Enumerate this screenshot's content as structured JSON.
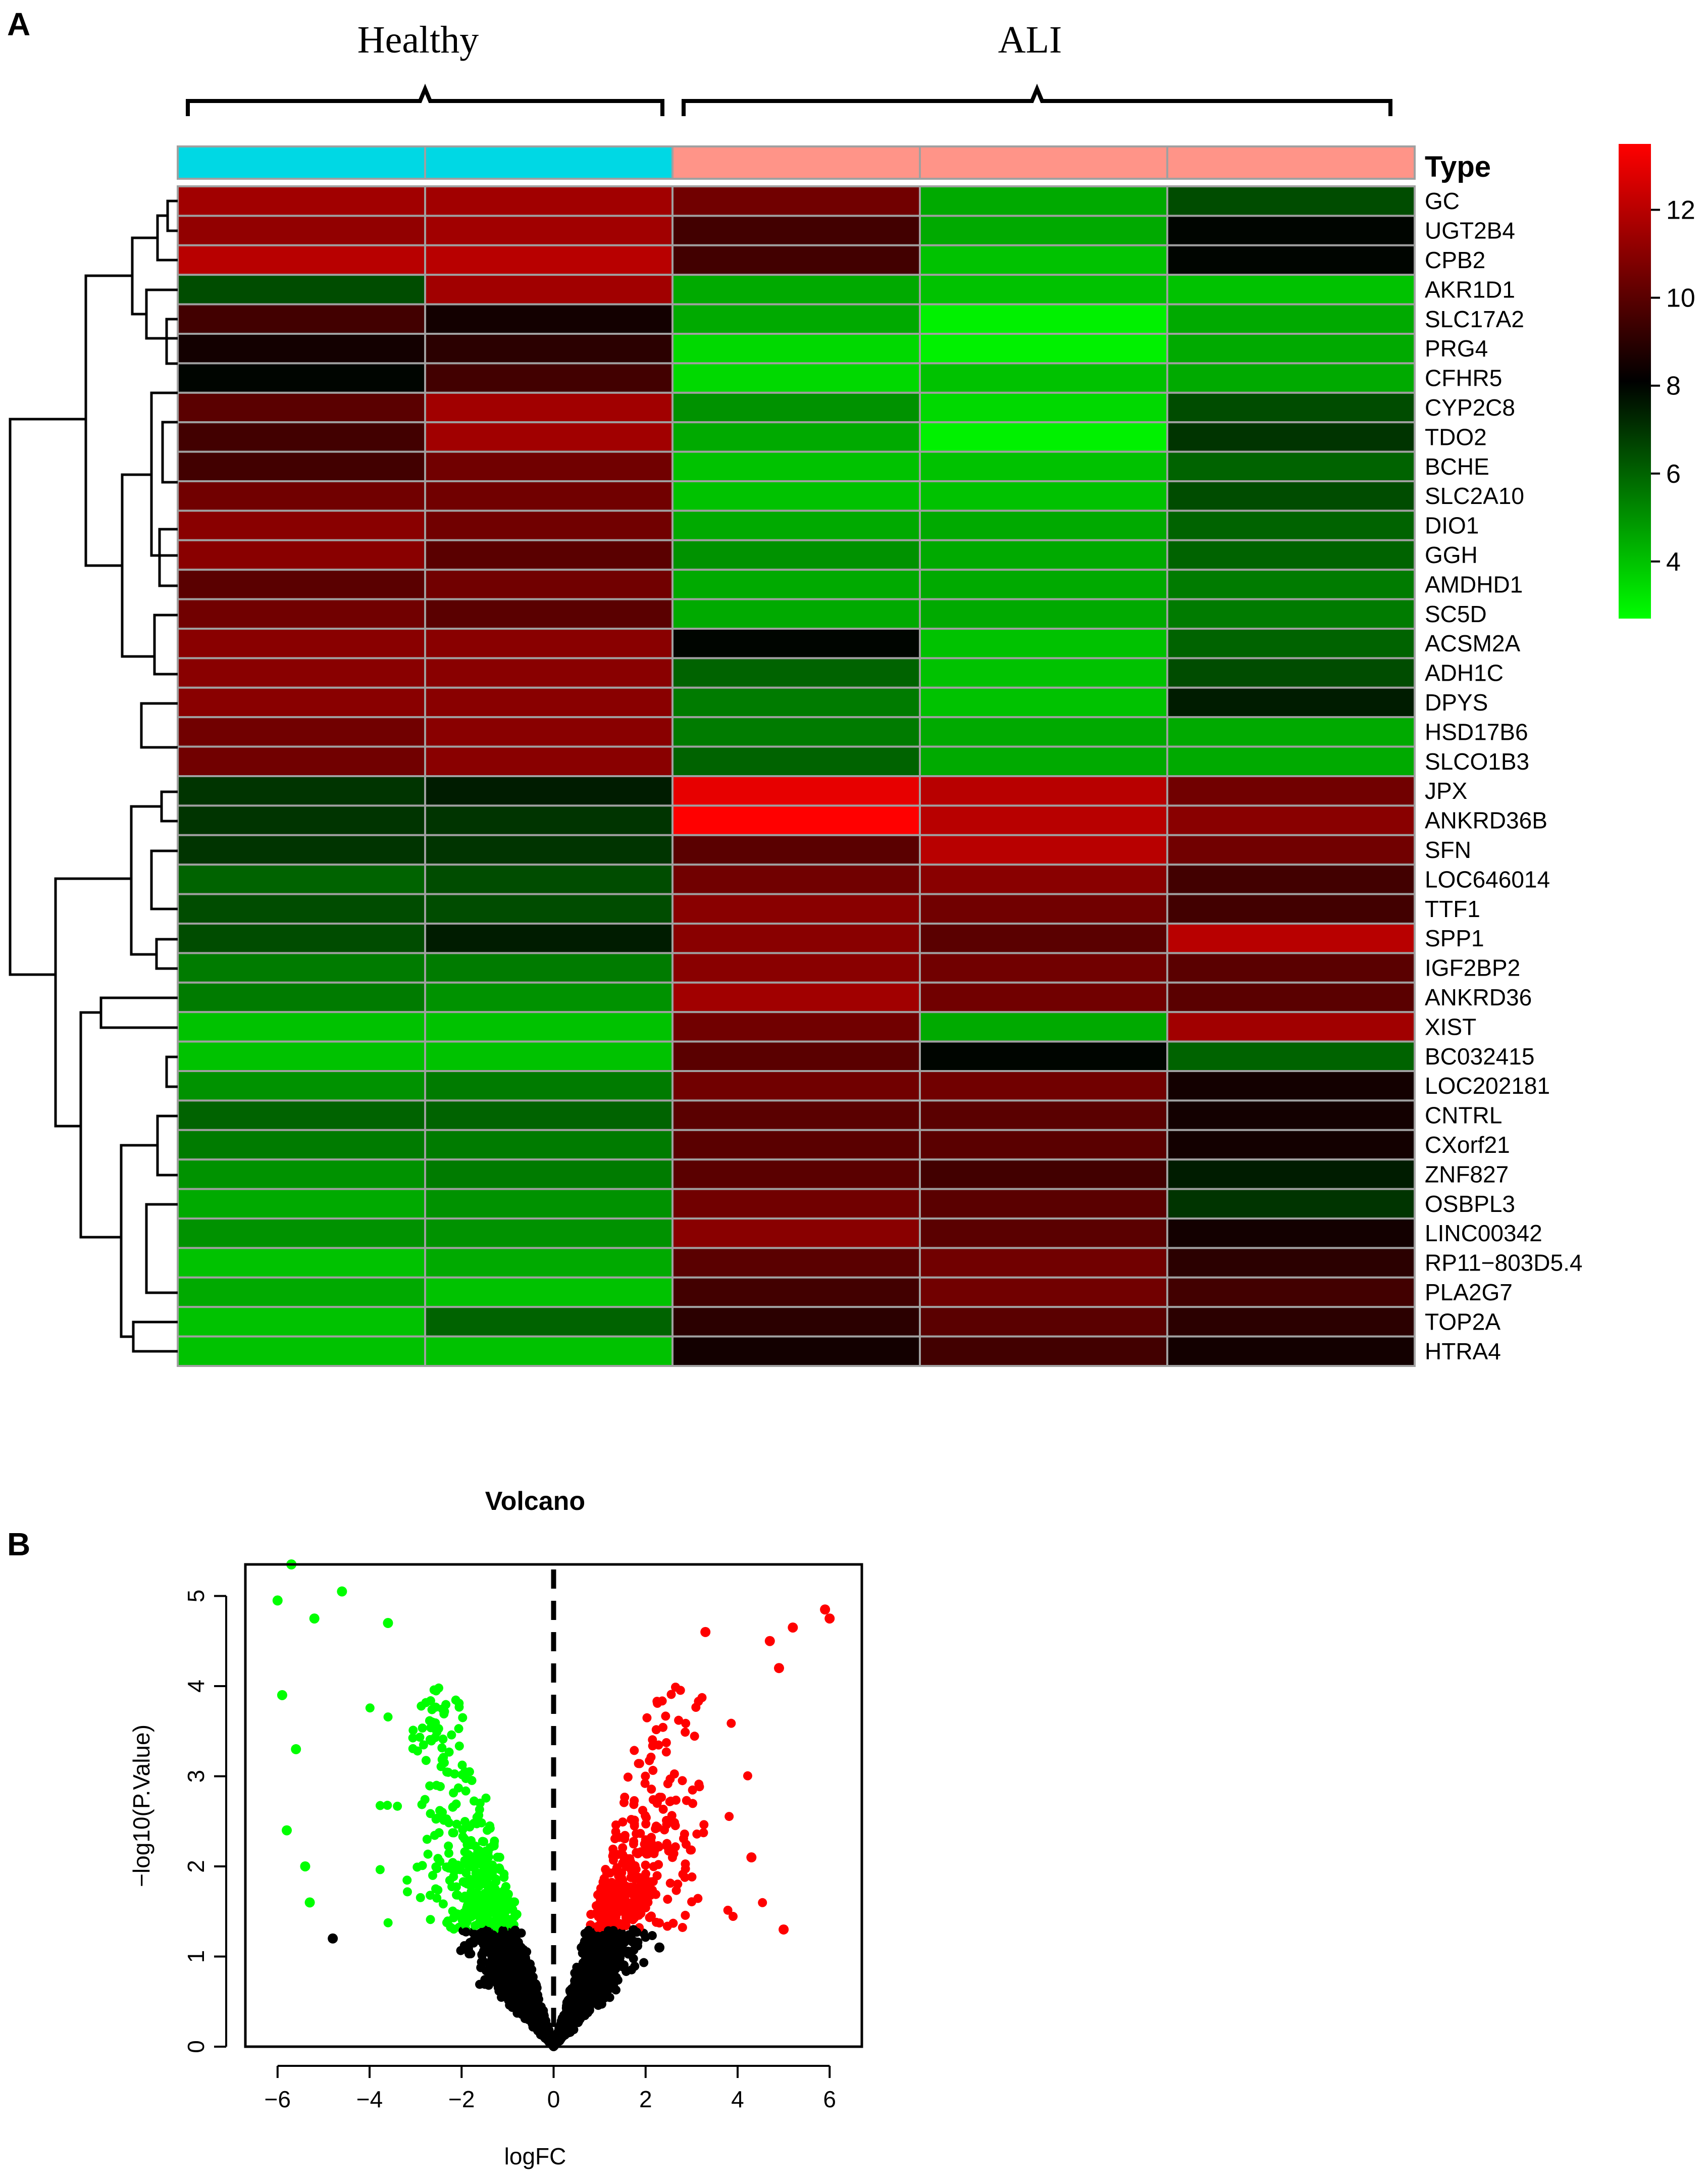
{
  "panels": {
    "a_label": "A",
    "b_label": "B"
  },
  "colors": {
    "healthy": "#00d8e4",
    "ali": "#ff9488",
    "heat_low": "#00ff00",
    "heat_mid": "#000000",
    "heat_high": "#ff0000",
    "up": "#ff0000",
    "down": "#00ff00",
    "ns": "#000000"
  },
  "chart_data": [
    {
      "type": "heatmap",
      "title": "",
      "group_labels": [
        "Healthy",
        "ALI"
      ],
      "annotation_title": "Type",
      "columns": [
        "Healthy",
        "Healthy",
        "ALI",
        "ALI",
        "ALI"
      ],
      "rows": [
        "GC",
        "UGT2B4",
        "CPB2",
        "AKR1D1",
        "SLC17A2",
        "PRG4",
        "CFHR5",
        "CYP2C8",
        "TDO2",
        "BCHE",
        "SLC2A10",
        "DIO1",
        "GGH",
        "AMDHD1",
        "SC5D",
        "ACSM2A",
        "ADH1C",
        "DPYS",
        "HSD17B6",
        "SLCO1B3",
        "JPX",
        "ANKRD36B",
        "SFN",
        "LOC646014",
        "TTF1",
        "SPP1",
        "IGF2BP2",
        "ANKRD36",
        "XIST",
        "BC032415",
        "LOC202181",
        "CNTRL",
        "CXorf21",
        "ZNF827",
        "OSBPL3",
        "LINC00342",
        "RP11−803D5.4",
        "PLA2G7",
        "TOP2A",
        "HTRA4"
      ],
      "values": [
        [
          11.5,
          11.5,
          10.5,
          4.5,
          6.5
        ],
        [
          11.2,
          11.5,
          9.5,
          4.5,
          8.0
        ],
        [
          12.0,
          12.0,
          9.5,
          4.0,
          8.0
        ],
        [
          6.5,
          11.5,
          4.5,
          4.0,
          4.0
        ],
        [
          9.5,
          8.5,
          4.5,
          3.0,
          4.5
        ],
        [
          8.5,
          9.0,
          3.5,
          3.0,
          4.5
        ],
        [
          8.0,
          9.5,
          3.5,
          4.0,
          4.5
        ],
        [
          10.0,
          11.5,
          5.0,
          3.5,
          6.5
        ],
        [
          9.5,
          11.5,
          4.5,
          3.0,
          7.0
        ],
        [
          9.5,
          10.5,
          4.0,
          4.0,
          6.0
        ],
        [
          10.5,
          10.5,
          4.0,
          4.0,
          6.5
        ],
        [
          11.0,
          10.5,
          4.5,
          4.5,
          6.0
        ],
        [
          11.0,
          10.0,
          5.0,
          4.5,
          6.0
        ],
        [
          10.0,
          10.5,
          4.5,
          4.5,
          5.5
        ],
        [
          10.5,
          10.0,
          4.5,
          4.5,
          5.5
        ],
        [
          11.0,
          11.0,
          8.0,
          4.0,
          6.0
        ],
        [
          11.0,
          11.0,
          6.0,
          4.0,
          6.5
        ],
        [
          11.0,
          11.0,
          5.5,
          4.0,
          7.5
        ],
        [
          10.5,
          11.0,
          5.5,
          4.5,
          4.5
        ],
        [
          10.5,
          11.0,
          6.0,
          4.5,
          4.5
        ],
        [
          7.0,
          7.5,
          13.0,
          12.0,
          10.5
        ],
        [
          7.0,
          7.0,
          13.5,
          12.0,
          11.0
        ],
        [
          7.0,
          7.0,
          10.0,
          12.0,
          10.5
        ],
        [
          6.0,
          6.5,
          10.5,
          11.0,
          9.5
        ],
        [
          6.5,
          6.5,
          11.0,
          10.5,
          9.5
        ],
        [
          6.5,
          7.5,
          11.0,
          10.0,
          12.0
        ],
        [
          5.5,
          5.5,
          11.0,
          10.5,
          10.0
        ],
        [
          5.5,
          5.0,
          11.5,
          10.5,
          10.0
        ],
        [
          4.0,
          4.0,
          10.5,
          4.5,
          11.5
        ],
        [
          4.0,
          4.0,
          10.0,
          8.0,
          6.0
        ],
        [
          5.0,
          5.5,
          10.5,
          10.5,
          8.5
        ],
        [
          6.0,
          6.0,
          10.0,
          10.0,
          8.5
        ],
        [
          5.5,
          5.5,
          10.0,
          10.0,
          8.5
        ],
        [
          5.0,
          5.5,
          10.0,
          9.5,
          7.5
        ],
        [
          4.5,
          5.0,
          10.5,
          10.0,
          7.0
        ],
        [
          5.0,
          5.0,
          11.0,
          10.0,
          8.5
        ],
        [
          4.0,
          4.5,
          10.0,
          10.5,
          9.0
        ],
        [
          4.5,
          4.0,
          9.5,
          10.5,
          9.5
        ],
        [
          4.0,
          6.0,
          9.0,
          10.0,
          9.0
        ],
        [
          4.0,
          4.0,
          8.5,
          9.5,
          8.5
        ]
      ],
      "legend_ticks": [
        "12",
        "10",
        "8",
        "6",
        "4"
      ],
      "color_scale": [
        2.7,
        13.5
      ]
    },
    {
      "type": "scatter",
      "title": "Volcano",
      "xlabel": "logFC",
      "ylabel": "−log10(P.Value)",
      "xlim": [
        -6.7,
        6.7
      ],
      "ylim": [
        0,
        5.35
      ],
      "x_ticks": [
        -6,
        -4,
        -2,
        0,
        2,
        4,
        6
      ],
      "x_tick_labels": [
        "−6",
        "−4",
        "−2",
        "0",
        "2",
        "4",
        "6"
      ],
      "y_ticks": [
        0,
        1,
        2,
        3,
        4,
        5
      ],
      "y_tick_labels": [
        "0",
        "1",
        "2",
        "3",
        "4",
        "5"
      ],
      "vline_x": 0,
      "p_threshold": 1.3,
      "series": [
        {
          "name": "down",
          "color": "#00ff00"
        },
        {
          "name": "up",
          "color": "#ff0000"
        },
        {
          "name": "not significant",
          "color": "#000000"
        }
      ],
      "highlight_points": [
        {
          "x": -5.7,
          "y": 5.35,
          "group": "down"
        },
        {
          "x": -6.0,
          "y": 4.95,
          "group": "down"
        },
        {
          "x": -4.6,
          "y": 5.05,
          "group": "down"
        },
        {
          "x": -5.2,
          "y": 4.75,
          "group": "down"
        },
        {
          "x": -3.6,
          "y": 4.7,
          "group": "down"
        },
        {
          "x": -5.9,
          "y": 3.9,
          "group": "down"
        },
        {
          "x": -5.6,
          "y": 3.3,
          "group": "down"
        },
        {
          "x": -5.8,
          "y": 2.4,
          "group": "down"
        },
        {
          "x": -5.4,
          "y": 2.0,
          "group": "down"
        },
        {
          "x": -5.3,
          "y": 1.6,
          "group": "down"
        },
        {
          "x": 5.9,
          "y": 4.85,
          "group": "up"
        },
        {
          "x": 6.0,
          "y": 4.75,
          "group": "up"
        },
        {
          "x": 5.2,
          "y": 4.65,
          "group": "up"
        },
        {
          "x": 4.7,
          "y": 4.5,
          "group": "up"
        },
        {
          "x": 4.9,
          "y": 4.2,
          "group": "up"
        },
        {
          "x": 3.3,
          "y": 4.6,
          "group": "up"
        },
        {
          "x": 5.0,
          "y": 1.3,
          "group": "up"
        },
        {
          "x": 4.3,
          "y": 2.1,
          "group": "up"
        },
        {
          "x": -4.8,
          "y": 1.2,
          "group": "ns"
        },
        {
          "x": 2.3,
          "y": 1.1,
          "group": "ns"
        }
      ]
    }
  ]
}
